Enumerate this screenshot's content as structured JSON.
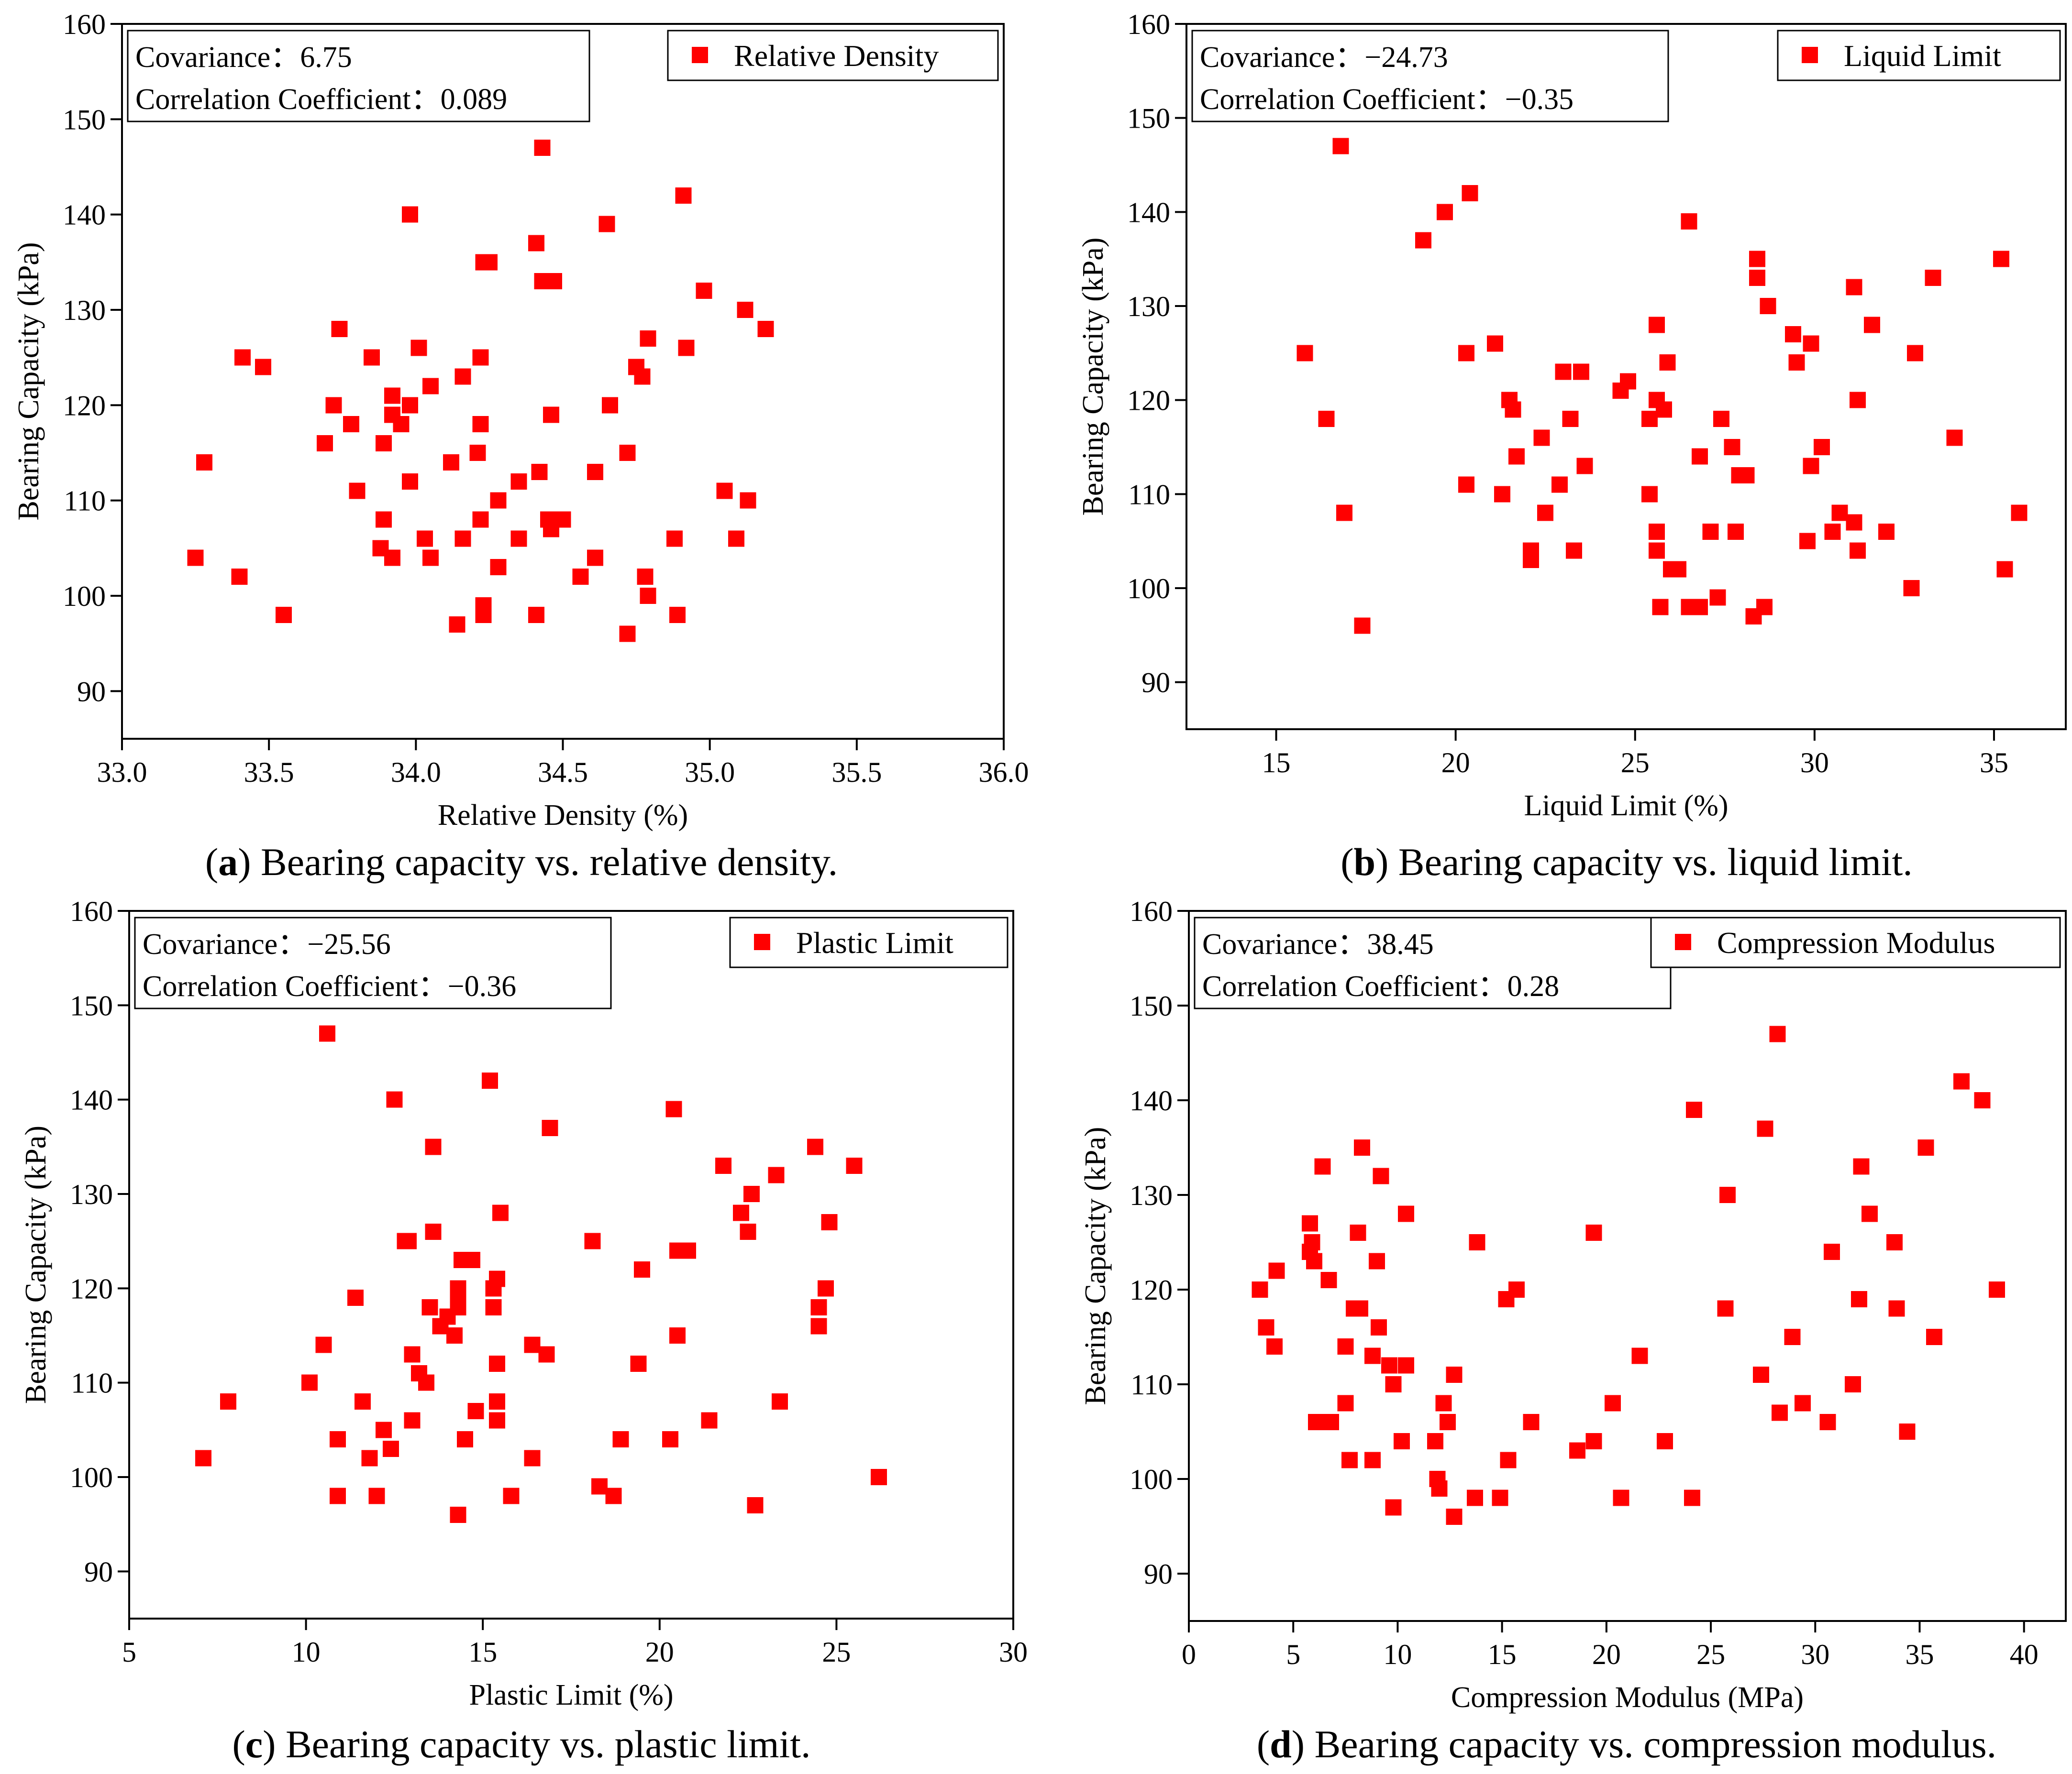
{
  "colors": {
    "marker": "#ff0000",
    "axis": "#000000",
    "background": "#ffffff"
  },
  "chart_data": [
    {
      "id": "a",
      "type": "scatter",
      "caption_letter": "a",
      "caption_text": " Bearing capacity vs. relative density.",
      "xlabel": "Relative Density (%)",
      "ylabel": "Bearing Capacity (kPa)",
      "legend": "Relative Density",
      "stats": [
        "Covariance：6.75",
        "Correlation Coefficient：0.089"
      ],
      "xlim": [
        33.0,
        36.0
      ],
      "ylim": [
        85,
        160
      ],
      "xticks": [
        33.0,
        33.5,
        34.0,
        34.5,
        35.0,
        35.5,
        36.0
      ],
      "xtick_labels": [
        "33.0",
        "33.5",
        "34.0",
        "34.5",
        "35.0",
        "35.5",
        "36.0"
      ],
      "yticks": [
        90,
        100,
        110,
        120,
        130,
        140,
        150,
        160
      ],
      "points": [
        [
          33.25,
          104
        ],
        [
          33.28,
          114
        ],
        [
          33.4,
          102
        ],
        [
          33.41,
          125
        ],
        [
          33.48,
          124
        ],
        [
          33.55,
          98
        ],
        [
          33.69,
          116
        ],
        [
          33.72,
          120
        ],
        [
          33.74,
          128
        ],
        [
          33.78,
          118
        ],
        [
          33.8,
          111
        ],
        [
          33.85,
          125
        ],
        [
          33.88,
          105
        ],
        [
          33.89,
          116
        ],
        [
          33.89,
          108
        ],
        [
          33.92,
          104
        ],
        [
          33.92,
          119
        ],
        [
          33.92,
          121
        ],
        [
          33.95,
          118
        ],
        [
          33.98,
          112
        ],
        [
          33.98,
          120
        ],
        [
          33.98,
          140
        ],
        [
          34.01,
          126
        ],
        [
          34.03,
          106
        ],
        [
          34.05,
          104
        ],
        [
          34.05,
          122
        ],
        [
          34.12,
          114
        ],
        [
          34.14,
          97
        ],
        [
          34.16,
          106
        ],
        [
          34.16,
          123
        ],
        [
          34.21,
          115
        ],
        [
          34.22,
          108
        ],
        [
          34.22,
          118
        ],
        [
          34.22,
          125
        ],
        [
          34.23,
          135
        ],
        [
          34.23,
          99
        ],
        [
          34.23,
          98
        ],
        [
          34.25,
          135
        ],
        [
          34.28,
          110
        ],
        [
          34.28,
          103
        ],
        [
          34.35,
          112
        ],
        [
          34.35,
          106
        ],
        [
          34.41,
          98
        ],
        [
          34.41,
          137
        ],
        [
          34.42,
          113
        ],
        [
          34.43,
          133
        ],
        [
          34.43,
          147
        ],
        [
          34.45,
          108
        ],
        [
          34.46,
          119
        ],
        [
          34.46,
          107
        ],
        [
          34.47,
          133
        ],
        [
          34.5,
          108
        ],
        [
          34.56,
          102
        ],
        [
          34.61,
          104
        ],
        [
          34.61,
          113
        ],
        [
          34.65,
          139
        ],
        [
          34.66,
          120
        ],
        [
          34.72,
          96
        ],
        [
          34.72,
          115
        ],
        [
          34.75,
          124
        ],
        [
          34.77,
          123
        ],
        [
          34.78,
          102
        ],
        [
          34.79,
          100
        ],
        [
          34.79,
          127
        ],
        [
          34.88,
          106
        ],
        [
          34.89,
          98
        ],
        [
          34.91,
          142
        ],
        [
          34.92,
          126
        ],
        [
          34.98,
          132
        ],
        [
          35.05,
          111
        ],
        [
          35.09,
          106
        ],
        [
          35.12,
          130
        ],
        [
          35.13,
          110
        ],
        [
          35.19,
          128
        ]
      ]
    },
    {
      "id": "b",
      "type": "scatter",
      "caption_letter": "b",
      "caption_text": " Bearing capacity vs. liquid limit.",
      "xlabel": "Liquid Limit (%)",
      "ylabel": "Bearing Capacity (kPa)",
      "legend": "Liquid Limit",
      "stats": [
        "Covariance：−24.73",
        "Correlation Coefficient：−0.35"
      ],
      "xlim": [
        12.5,
        37.0
      ],
      "ylim": [
        85,
        160
      ],
      "xticks": [
        15,
        20,
        25,
        30,
        35
      ],
      "xtick_labels": [
        "15",
        "20",
        "25",
        "30",
        "35"
      ],
      "yticks": [
        90,
        100,
        110,
        120,
        130,
        140,
        150,
        160
      ],
      "points": [
        [
          15.8,
          125
        ],
        [
          16.4,
          118
        ],
        [
          16.8,
          147
        ],
        [
          16.9,
          108
        ],
        [
          17.4,
          96
        ],
        [
          19.1,
          137
        ],
        [
          19.7,
          140
        ],
        [
          20.3,
          125
        ],
        [
          20.3,
          111
        ],
        [
          20.4,
          142
        ],
        [
          21.1,
          126
        ],
        [
          21.3,
          110
        ],
        [
          21.5,
          120
        ],
        [
          21.6,
          119
        ],
        [
          21.7,
          114
        ],
        [
          22.1,
          103
        ],
        [
          22.1,
          104
        ],
        [
          22.4,
          116
        ],
        [
          22.5,
          108
        ],
        [
          22.9,
          111
        ],
        [
          23.0,
          123
        ],
        [
          23.2,
          118
        ],
        [
          23.3,
          104
        ],
        [
          23.5,
          123
        ],
        [
          23.6,
          113
        ],
        [
          24.6,
          121
        ],
        [
          24.8,
          122
        ],
        [
          25.4,
          110
        ],
        [
          25.4,
          118
        ],
        [
          25.6,
          106
        ],
        [
          25.6,
          104
        ],
        [
          25.6,
          128
        ],
        [
          25.7,
          98
        ],
        [
          25.6,
          120
        ],
        [
          25.8,
          119
        ],
        [
          25.9,
          124
        ],
        [
          26.0,
          102
        ],
        [
          26.2,
          102
        ],
        [
          26.5,
          98
        ],
        [
          26.5,
          139
        ],
        [
          26.8,
          98
        ],
        [
          26.8,
          114
        ],
        [
          27.1,
          106
        ],
        [
          27.3,
          99
        ],
        [
          27.4,
          118
        ],
        [
          27.7,
          115
        ],
        [
          27.9,
          112
        ],
        [
          27.8,
          106
        ],
        [
          28.1,
          112
        ],
        [
          28.3,
          97
        ],
        [
          28.4,
          133
        ],
        [
          28.4,
          135
        ],
        [
          28.6,
          98
        ],
        [
          28.7,
          130
        ],
        [
          29.4,
          127
        ],
        [
          29.5,
          124
        ],
        [
          29.8,
          105
        ],
        [
          29.9,
          126
        ],
        [
          29.9,
          113
        ],
        [
          30.2,
          115
        ],
        [
          30.5,
          106
        ],
        [
          30.7,
          108
        ],
        [
          31.1,
          132
        ],
        [
          31.1,
          107
        ],
        [
          31.2,
          120
        ],
        [
          31.2,
          104
        ],
        [
          31.6,
          128
        ],
        [
          32.0,
          106
        ],
        [
          32.7,
          100
        ],
        [
          32.8,
          125
        ],
        [
          33.3,
          133
        ],
        [
          33.9,
          116
        ],
        [
          35.2,
          135
        ],
        [
          35.3,
          102
        ],
        [
          35.7,
          108
        ]
      ]
    },
    {
      "id": "c",
      "type": "scatter",
      "caption_letter": "c",
      "caption_text": " Bearing capacity vs. plastic limit.",
      "xlabel": "Plastic Limit (%)",
      "ylabel": "Bearing Capacity (kPa)",
      "legend": "Plastic Limit",
      "stats": [
        "Covariance：−25.56",
        "Correlation Coefficient：−0.36"
      ],
      "xlim": [
        5,
        30
      ],
      "ylim": [
        85,
        160
      ],
      "xticks": [
        5,
        10,
        15,
        20,
        25,
        30
      ],
      "xtick_labels": [
        "5",
        "10",
        "15",
        "20",
        "25",
        "30"
      ],
      "yticks": [
        90,
        100,
        110,
        120,
        130,
        140,
        150,
        160
      ],
      "points": [
        [
          7.1,
          102
        ],
        [
          7.8,
          108
        ],
        [
          10.1,
          110
        ],
        [
          10.5,
          114
        ],
        [
          10.6,
          147
        ],
        [
          10.9,
          104
        ],
        [
          10.9,
          98
        ],
        [
          11.4,
          119
        ],
        [
          11.6,
          108
        ],
        [
          11.8,
          102
        ],
        [
          12.0,
          98
        ],
        [
          12.2,
          105
        ],
        [
          12.4,
          103
        ],
        [
          12.5,
          140
        ],
        [
          12.8,
          125
        ],
        [
          12.9,
          125
        ],
        [
          13.0,
          113
        ],
        [
          13.0,
          106
        ],
        [
          13.2,
          111
        ],
        [
          13.4,
          110
        ],
        [
          13.5,
          118
        ],
        [
          13.6,
          126
        ],
        [
          13.6,
          135
        ],
        [
          13.8,
          116
        ],
        [
          14.0,
          117
        ],
        [
          14.2,
          115
        ],
        [
          14.3,
          119
        ],
        [
          14.3,
          120
        ],
        [
          14.3,
          118
        ],
        [
          14.4,
          123
        ],
        [
          14.5,
          104
        ],
        [
          14.7,
          123
        ],
        [
          14.8,
          107
        ],
        [
          14.3,
          96
        ],
        [
          15.2,
          142
        ],
        [
          15.3,
          120
        ],
        [
          15.3,
          118
        ],
        [
          15.4,
          121
        ],
        [
          15.4,
          112
        ],
        [
          15.4,
          108
        ],
        [
          15.4,
          106
        ],
        [
          15.5,
          128
        ],
        [
          15.8,
          98
        ],
        [
          16.4,
          114
        ],
        [
          16.4,
          102
        ],
        [
          16.8,
          113
        ],
        [
          16.9,
          137
        ],
        [
          18.1,
          125
        ],
        [
          18.3,
          99
        ],
        [
          18.7,
          98
        ],
        [
          18.9,
          104
        ],
        [
          19.4,
          112
        ],
        [
          19.5,
          122
        ],
        [
          20.3,
          104
        ],
        [
          20.4,
          139
        ],
        [
          20.5,
          115
        ],
        [
          20.5,
          124
        ],
        [
          20.8,
          124
        ],
        [
          21.4,
          106
        ],
        [
          21.8,
          133
        ],
        [
          22.3,
          128
        ],
        [
          22.5,
          126
        ],
        [
          22.6,
          130
        ],
        [
          22.7,
          97
        ],
        [
          23.3,
          132
        ],
        [
          23.4,
          108
        ],
        [
          24.4,
          135
        ],
        [
          24.5,
          116
        ],
        [
          24.5,
          118
        ],
        [
          24.7,
          120
        ],
        [
          24.8,
          127
        ],
        [
          25.5,
          133
        ],
        [
          26.2,
          100
        ]
      ]
    },
    {
      "id": "d",
      "type": "scatter",
      "caption_letter": "d",
      "caption_text": " Bearing capacity vs. compression modulus.",
      "xlabel": "Compression Modulus (MPa)",
      "ylabel": "Bearing Capacity (kPa)",
      "legend": "Compression Modulus",
      "stats": [
        "Covariance：38.45",
        "Correlation Coefficient：0.28"
      ],
      "xlim": [
        0,
        42
      ],
      "ylim": [
        85,
        160
      ],
      "xticks": [
        0,
        5,
        10,
        15,
        20,
        25,
        30,
        35,
        40
      ],
      "xtick_labels": [
        "0",
        "5",
        "10",
        "15",
        "20",
        "25",
        "30",
        "35",
        "40"
      ],
      "yticks": [
        90,
        100,
        110,
        120,
        130,
        140,
        150,
        160
      ],
      "points": [
        [
          3.4,
          120
        ],
        [
          3.7,
          116
        ],
        [
          4.1,
          114
        ],
        [
          4.2,
          122
        ],
        [
          5.8,
          124
        ],
        [
          5.8,
          127
        ],
        [
          5.9,
          125
        ],
        [
          6.0,
          123
        ],
        [
          6.1,
          106
        ],
        [
          6.4,
          133
        ],
        [
          6.5,
          106
        ],
        [
          6.7,
          121
        ],
        [
          6.8,
          106
        ],
        [
          7.5,
          114
        ],
        [
          7.5,
          108
        ],
        [
          7.7,
          102
        ],
        [
          7.9,
          118
        ],
        [
          8.1,
          126
        ],
        [
          8.2,
          118
        ],
        [
          8.3,
          135
        ],
        [
          8.8,
          113
        ],
        [
          8.8,
          102
        ],
        [
          9.0,
          123
        ],
        [
          9.1,
          116
        ],
        [
          9.2,
          132
        ],
        [
          9.6,
          112
        ],
        [
          9.8,
          110
        ],
        [
          9.8,
          97
        ],
        [
          10.2,
          104
        ],
        [
          10.4,
          112
        ],
        [
          10.4,
          128
        ],
        [
          11.8,
          104
        ],
        [
          11.9,
          100
        ],
        [
          12.0,
          99
        ],
        [
          12.2,
          108
        ],
        [
          12.4,
          106
        ],
        [
          12.7,
          111
        ],
        [
          12.7,
          96
        ],
        [
          13.7,
          98
        ],
        [
          13.8,
          125
        ],
        [
          14.9,
          98
        ],
        [
          15.2,
          119
        ],
        [
          15.3,
          102
        ],
        [
          15.7,
          120
        ],
        [
          16.4,
          106
        ],
        [
          18.6,
          103
        ],
        [
          19.4,
          126
        ],
        [
          19.4,
          104
        ],
        [
          20.3,
          108
        ],
        [
          20.7,
          98
        ],
        [
          21.6,
          113
        ],
        [
          22.8,
          104
        ],
        [
          24.1,
          98
        ],
        [
          24.2,
          139
        ],
        [
          25.7,
          118
        ],
        [
          25.8,
          130
        ],
        [
          27.4,
          111
        ],
        [
          27.6,
          137
        ],
        [
          28.2,
          147
        ],
        [
          28.3,
          107
        ],
        [
          28.9,
          115
        ],
        [
          29.4,
          108
        ],
        [
          30.6,
          106
        ],
        [
          30.8,
          124
        ],
        [
          31.8,
          110
        ],
        [
          32.1,
          119
        ],
        [
          32.2,
          133
        ],
        [
          32.6,
          128
        ],
        [
          33.8,
          125
        ],
        [
          33.9,
          118
        ],
        [
          34.4,
          105
        ],
        [
          35.3,
          135
        ],
        [
          35.7,
          115
        ],
        [
          37.0,
          142
        ],
        [
          38.0,
          140
        ],
        [
          38.7,
          120
        ]
      ]
    }
  ]
}
